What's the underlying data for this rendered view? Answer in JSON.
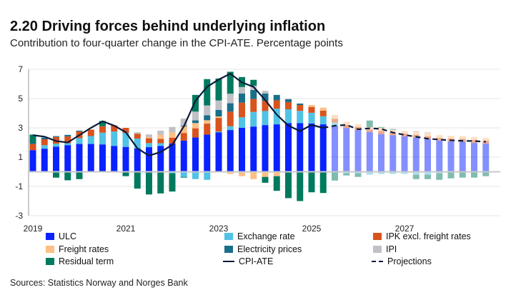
{
  "header": {
    "title": "2.20 Driving forces behind underlying inflation",
    "subtitle": "Contribution to four-quarter change in the CPI-ATE. Percentage points"
  },
  "source": "Sources: Statistics Norway and Norges Bank",
  "chart_data": {
    "type": "bar",
    "stacked": true,
    "categories": [
      "2019Q1",
      "2019Q2",
      "2019Q3",
      "2019Q4",
      "2020Q1",
      "2020Q2",
      "2020Q3",
      "2020Q4",
      "2021Q1",
      "2021Q2",
      "2021Q3",
      "2021Q4",
      "2022Q1",
      "2022Q2",
      "2022Q3",
      "2022Q4",
      "2023Q1",
      "2023Q2",
      "2023Q3",
      "2023Q4",
      "2024Q1",
      "2024Q2",
      "2024Q3",
      "2024Q4",
      "2025Q1",
      "2025Q2",
      "2025Q3",
      "2025Q4",
      "2026Q1",
      "2026Q2",
      "2026Q3",
      "2026Q4",
      "2027Q1",
      "2027Q2",
      "2027Q3",
      "2027Q4",
      "2028Q1",
      "2028Q2",
      "2028Q3",
      "2028Q4"
    ],
    "projection_start": "2025Q3",
    "ylim": [
      -3,
      7
    ],
    "yticks": [
      -3,
      -1,
      1,
      3,
      5,
      7
    ],
    "xticks": [
      "2019",
      "2021",
      "2023",
      "2025",
      "2027"
    ],
    "grid": true,
    "legend_position": "bottom",
    "series": [
      {
        "name": "ULC",
        "color": "#0a22ff",
        "values": [
          1.48,
          1.58,
          1.72,
          1.82,
          1.9,
          1.9,
          1.87,
          1.77,
          1.7,
          1.6,
          1.68,
          1.77,
          1.94,
          2.13,
          2.34,
          2.54,
          2.7,
          2.85,
          3.0,
          3.09,
          3.19,
          3.24,
          3.33,
          3.33,
          3.3,
          3.24,
          3.14,
          2.98,
          2.85,
          2.72,
          2.57,
          2.5,
          2.42,
          2.33,
          2.23,
          2.13,
          2.07,
          2.05,
          1.97,
          1.92
        ]
      },
      {
        "name": "Exchange rate",
        "color": "#4fc3e6",
        "values": [
          0,
          0.24,
          0.2,
          0.13,
          0.4,
          0.54,
          0.8,
          0.98,
          0.96,
          0.67,
          0.28,
          0.18,
          -0.1,
          -0.35,
          -0.5,
          -0.55,
          0.05,
          0.26,
          0.72,
          1.0,
          0.96,
          1.07,
          0.94,
          0.83,
          0.73,
          0.55,
          0.22,
          -0.1,
          -0.1,
          -0.2,
          -0.15,
          -0.15,
          -0.15,
          -0.2,
          -0.2,
          -0.1,
          -0.05,
          -0.05,
          0,
          0
        ]
      },
      {
        "name": "IPK excl. freight rates",
        "color": "#d9531e",
        "values": [
          0.42,
          0.4,
          0.45,
          0.47,
          0.45,
          0.44,
          0.44,
          0.42,
          0.34,
          0.33,
          0.33,
          0.3,
          0.39,
          0.52,
          0.63,
          0.75,
          0.93,
          1.0,
          1.0,
          0.88,
          0.7,
          0.57,
          0.49,
          0.4,
          0.4,
          0.39,
          0.26,
          0.22,
          0.2,
          0.17,
          0.22,
          0.18,
          0.18,
          0.2,
          0.2,
          0.18,
          0.2,
          0.2,
          0.2,
          0.2
        ]
      },
      {
        "name": "Freight rates",
        "color": "#fdbf84",
        "values": [
          0,
          0,
          0,
          0,
          0,
          0,
          0,
          0,
          0,
          0,
          0.08,
          0.28,
          0.36,
          0.45,
          0.36,
          0.23,
          0.1,
          -0.15,
          -0.3,
          -0.5,
          -0.35,
          -0.3,
          0,
          0,
          0.13,
          0.2,
          0.26,
          0.21,
          0.19,
          0.16,
          0.22,
          0.19,
          0.19,
          0.19,
          0.2,
          0.19,
          0.19,
          0.19,
          0.2,
          0.2
        ]
      },
      {
        "name": "Electricity prices",
        "color": "#1a6e8a",
        "values": [
          0.1,
          0.1,
          0.05,
          0.1,
          0.06,
          0,
          0,
          0,
          0,
          0,
          -0.1,
          0,
          0,
          0.05,
          0.18,
          0.34,
          0.44,
          0.57,
          0.63,
          0.62,
          0.5,
          0.37,
          0.2,
          0.1,
          0,
          0,
          0,
          0,
          0,
          0,
          0,
          0,
          0,
          0,
          0,
          0,
          0,
          0,
          0,
          0
        ]
      },
      {
        "name": "IPI",
        "color": "#c0c0c6",
        "values": [
          0,
          0.05,
          0.05,
          0,
          0,
          0,
          0,
          0,
          0,
          0.1,
          0.18,
          0.28,
          0.37,
          0.49,
          0.6,
          0.67,
          0.65,
          0.65,
          0.44,
          0.29,
          0.18,
          0,
          0,
          0,
          0,
          0,
          0,
          0,
          0,
          0,
          0,
          0,
          0,
          0.08,
          0.08,
          0,
          0,
          0,
          0,
          0
        ]
      },
      {
        "name": "Residual term",
        "color": "#007a5e",
        "values": [
          0.54,
          0,
          -0.4,
          -0.58,
          -0.5,
          0,
          0.36,
          -0.05,
          -0.3,
          -1.15,
          -1.45,
          -1.48,
          -1.25,
          -0.05,
          1.14,
          1.8,
          1.5,
          1.5,
          0.68,
          0.4,
          -0.4,
          -1.0,
          -1.8,
          -2.0,
          -1.4,
          -1.45,
          -0.6,
          -0.15,
          -0.25,
          0.45,
          0.05,
          0.05,
          0,
          -0.3,
          -0.3,
          -0.45,
          -0.4,
          -0.35,
          -0.4,
          -0.3
        ]
      }
    ],
    "line": {
      "name": "CPI-ATE",
      "projection_name": "Projections",
      "color": "#0b1a3a",
      "values": [
        2.5,
        2.4,
        2.1,
        2.0,
        2.5,
        3.0,
        3.45,
        3.15,
        2.7,
        1.6,
        1.1,
        1.35,
        1.84,
        3.1,
        4.85,
        5.8,
        6.3,
        6.7,
        6.1,
        5.8,
        4.9,
        3.9,
        3.15,
        2.78,
        3.2,
        3.0,
        3.15,
        3.2,
        2.9,
        2.97,
        2.93,
        2.68,
        2.52,
        2.39,
        2.26,
        2.2,
        2.15,
        2.11,
        2.1,
        2.05
      ]
    }
  }
}
